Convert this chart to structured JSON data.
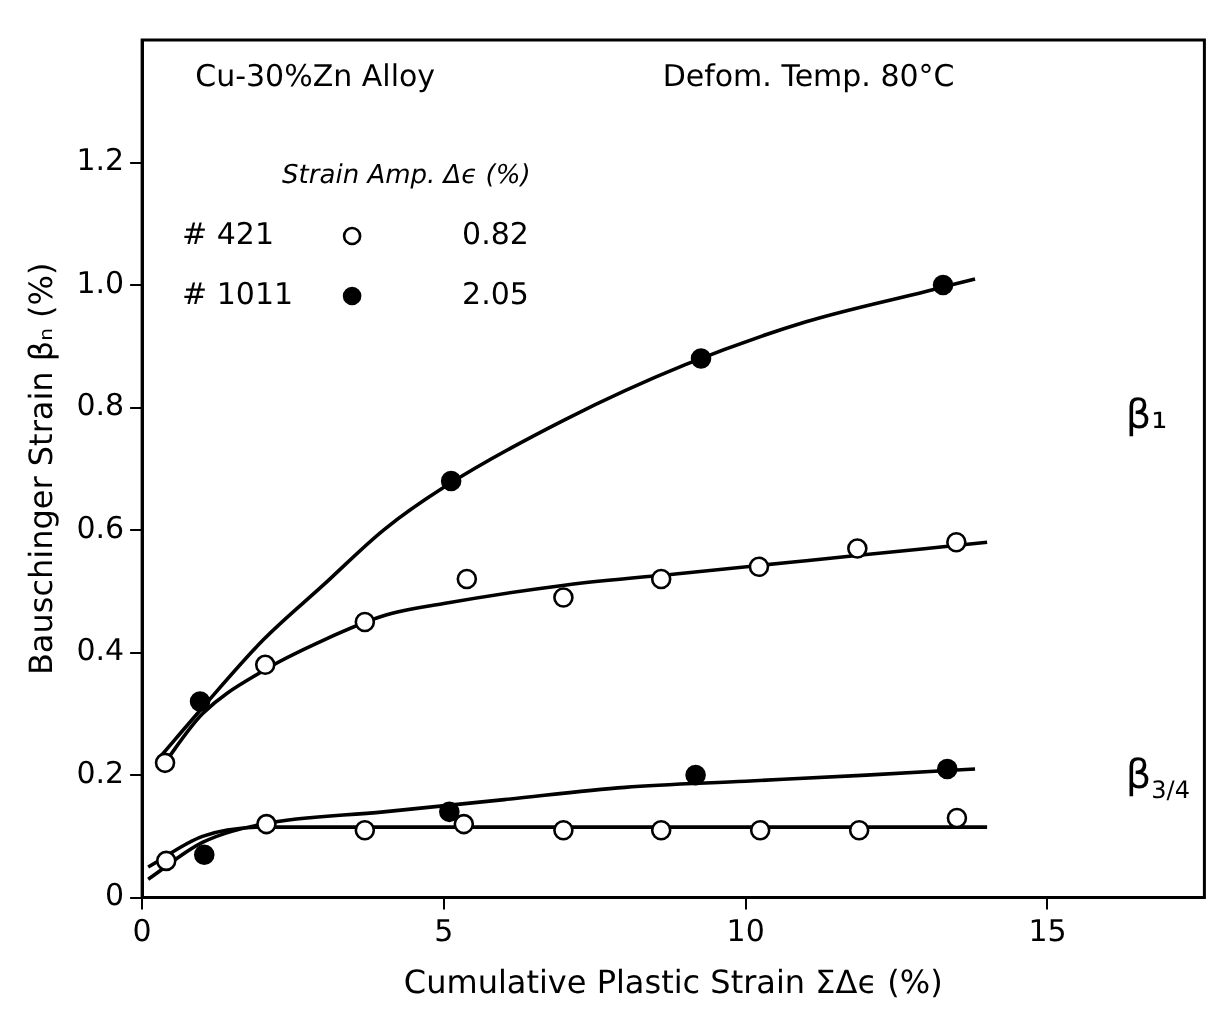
{
  "chart_data": {
    "type": "scatter",
    "xlabel": "Cumulative Plastic Strain ΣΔϵ (%)",
    "ylabel": "Bauschinger Strain βₙ (%)",
    "legend_title": "Strain Amp. Δϵ (%)",
    "xlim": [
      0,
      17.6
    ],
    "ylim": [
      0,
      1.4
    ],
    "xticks": [
      0,
      5,
      10,
      15
    ],
    "yticks": [
      0,
      0.2,
      0.4,
      0.6,
      0.8,
      {
        "value": 1,
        "label": "1.0"
      },
      1.2
    ],
    "grid": false,
    "legend": "top left",
    "series": [
      {
        "name": "# 421",
        "color": "#ffffff",
        "marker": "circle",
        "x": [
          0.38,
          2.04,
          3.69,
          5.38,
          6.98,
          8.6,
          10.22,
          11.85,
          13.49,
          0.4,
          2.06,
          3.69,
          5.33,
          6.98,
          8.6,
          10.24,
          11.88,
          13.5
        ],
        "values": [
          0.22,
          0.38,
          0.45,
          0.52,
          0.49,
          0.52,
          0.54,
          0.57,
          0.58,
          0.06,
          0.12,
          0.11,
          0.12,
          0.11,
          0.11,
          0.11,
          0.11,
          0.13
        ]
      },
      {
        "name": "# 1011",
        "color": "#000000",
        "marker": "circle",
        "x": [
          0.96,
          5.12,
          9.26,
          13.27,
          1.03,
          5.09,
          9.17,
          13.34
        ],
        "values": [
          0.32,
          0.68,
          0.88,
          1.0,
          0.07,
          0.14,
          0.2,
          0.21
        ]
      },
      {
        "type": "line",
        "color": "#000000",
        "x": [
          0.3,
          1,
          2,
          3,
          4,
          5,
          7,
          9,
          11,
          13,
          13.8
        ],
        "values": [
          0.23,
          0.31,
          0.42,
          0.51,
          0.6,
          0.67,
          0.78,
          0.87,
          0.94,
          0.99,
          1.01
        ],
        "marker": "none"
      },
      {
        "type": "line",
        "color": "#000000",
        "x": [
          0.3,
          1,
          2,
          3,
          4,
          5,
          7,
          9,
          11,
          13,
          14
        ],
        "values": [
          0.21,
          0.3,
          0.37,
          0.42,
          0.46,
          0.48,
          0.51,
          0.53,
          0.55,
          0.57,
          0.58
        ],
        "marker": "none"
      },
      {
        "type": "line",
        "color": "#000000",
        "x": [
          0.1,
          1,
          2,
          4,
          6,
          8,
          10,
          12,
          13.8
        ],
        "values": [
          0.03,
          0.09,
          0.12,
          0.14,
          0.16,
          0.18,
          0.19,
          0.2,
          0.21
        ],
        "marker": "none"
      },
      {
        "type": "line",
        "color": "#000000",
        "x": [
          0.1,
          1,
          2,
          4,
          8,
          14
        ],
        "values": [
          0.05,
          0.1,
          0.115,
          0.115,
          0.115,
          0.115
        ],
        "marker": "none"
      }
    ],
    "annotations": [
      "Cu-30%Zn Alloy",
      "Defom. Temp. 80°C",
      "0.82",
      "2.05",
      "β₁",
      "β$_{3/4}$"
    ]
  }
}
